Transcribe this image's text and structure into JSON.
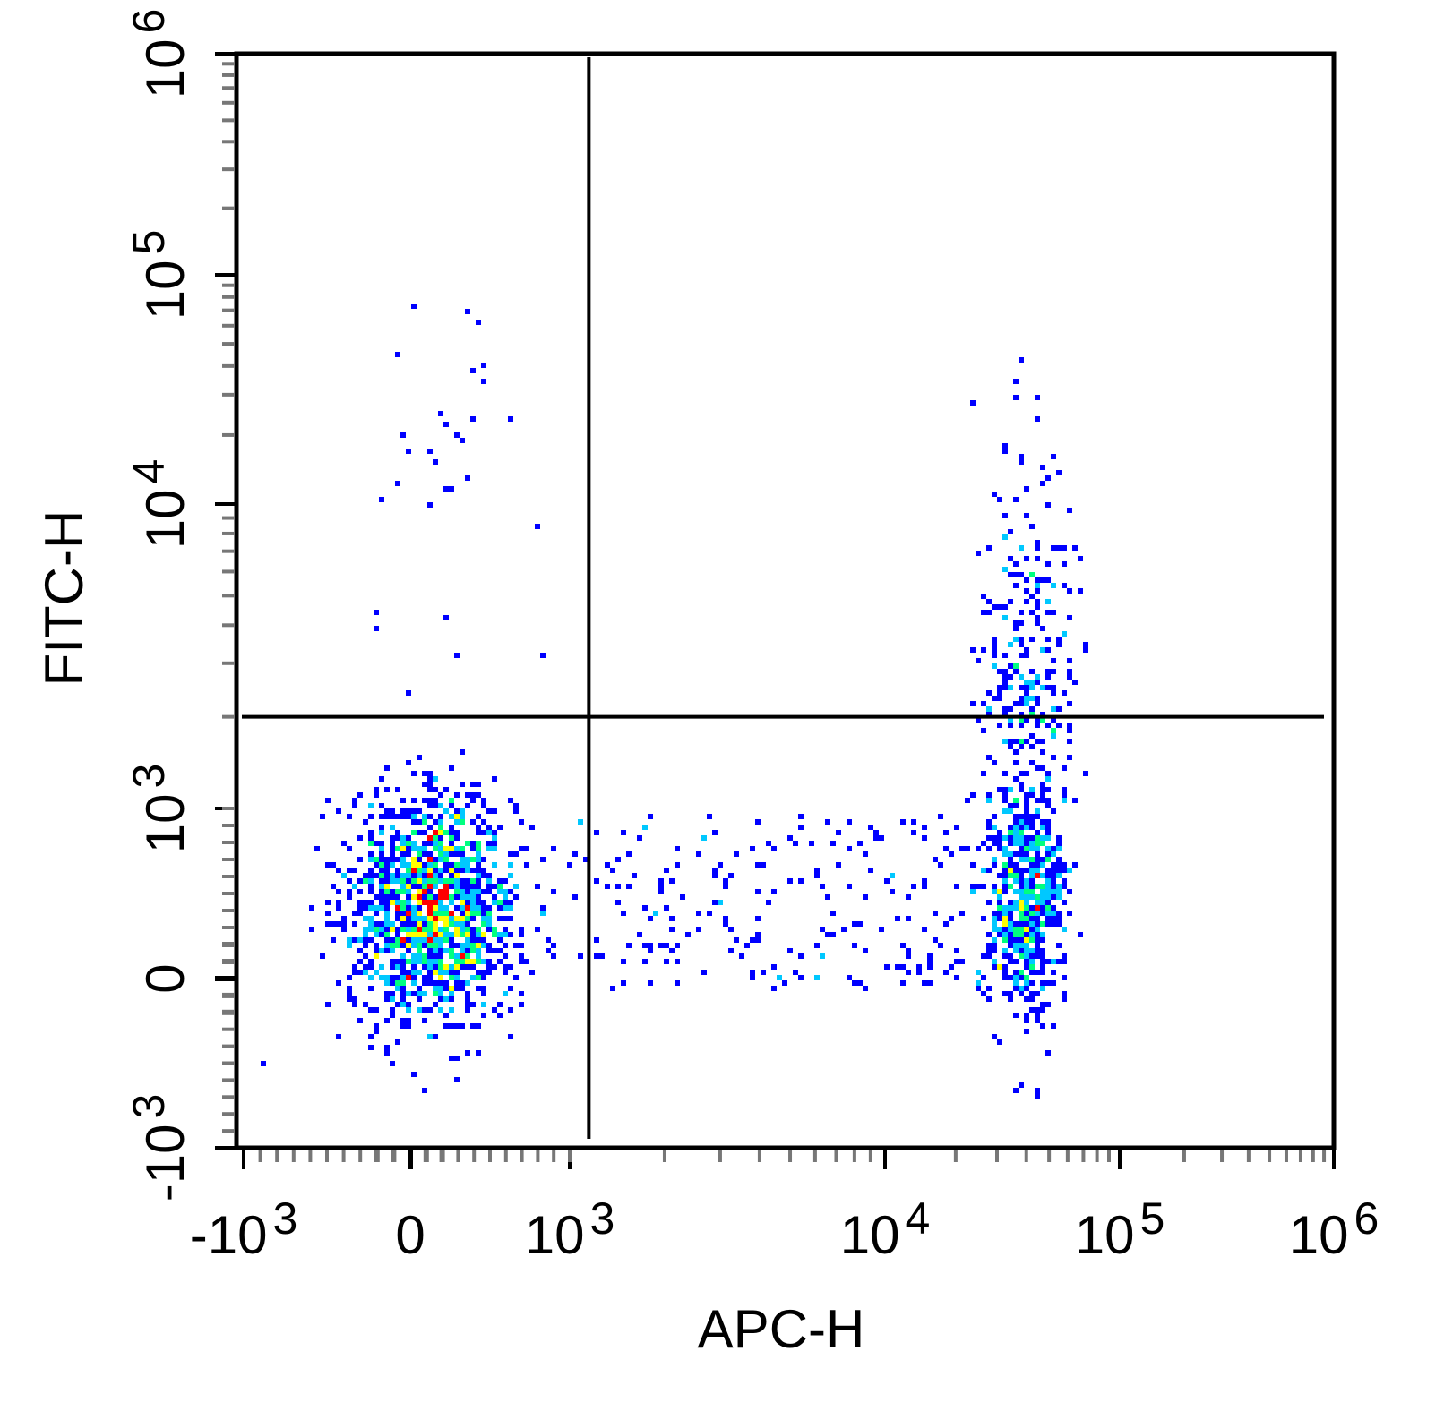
{
  "chart_data": {
    "type": "scatter",
    "subtype": "flow-cytometry-density-dot-plot",
    "xlabel": "APC-H",
    "ylabel": "FITC-H",
    "x_scale": "biexponential",
    "y_scale": "biexponential",
    "xlim": [
      -1000,
      1000000
    ],
    "ylim": [
      -1000,
      1000000
    ],
    "x_ticks": [
      {
        "base": "-10",
        "exp": "3",
        "value": -1000
      },
      {
        "base": "0",
        "exp": "",
        "value": 0
      },
      {
        "base": "10",
        "exp": "3",
        "value": 1000
      },
      {
        "base": "10",
        "exp": "4",
        "value": 10000
      },
      {
        "base": "10",
        "exp": "5",
        "value": 100000
      },
      {
        "base": "10",
        "exp": "6",
        "value": 1000000
      }
    ],
    "y_ticks": [
      {
        "base": "-10",
        "exp": "3",
        "value": -1000
      },
      {
        "base": "0",
        "exp": "",
        "value": 0
      },
      {
        "base": "10",
        "exp": "3",
        "value": 1000
      },
      {
        "base": "10",
        "exp": "4",
        "value": 10000
      },
      {
        "base": "10",
        "exp": "5",
        "value": 100000
      },
      {
        "base": "10",
        "exp": "6",
        "value": 1000000
      }
    ],
    "quadrant_gates": {
      "x": 1150,
      "y": 2000
    },
    "populations": [
      {
        "center": [
          150,
          420
        ],
        "spread": [
          260,
          330
        ],
        "count": 1500
      },
      {
        "center": [
          40000,
          500
        ],
        "spread": [
          0.09,
          0.42
        ],
        "count": 850
      }
    ],
    "density_colormap": [
      "#0000ff",
      "#00c8ff",
      "#00ff80",
      "#ffff00",
      "#ff0000"
    ],
    "grid": false,
    "legend": "none"
  }
}
